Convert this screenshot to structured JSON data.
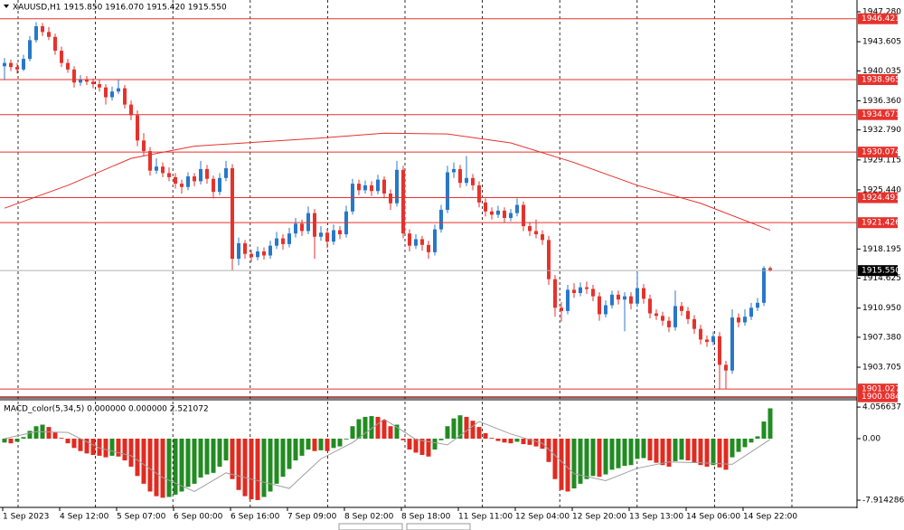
{
  "chart_data": {
    "type": "candlestick",
    "title": "XAUUSD,H1  1915.850 1916.070 1915.420 1915.550",
    "up_color": "#2878c8",
    "down_color": "#e6322d",
    "ylim": [
      1900.16,
      1948.72
    ],
    "yticks": [
      {
        "value": 1947.28,
        "label": "1947.280"
      },
      1943.605,
      1940.035,
      {
        "value": 1936.36,
        "label": "1936.360"
      },
      {
        "value": 1932.79,
        "label": "1932.790"
      },
      1929.115,
      {
        "value": 1925.44,
        "label": "1925.440"
      },
      1918.195,
      1914.625,
      {
        "value": 1910.95,
        "label": "1910.950"
      },
      {
        "value": 1907.38,
        "label": "1907.380"
      },
      1903.705
    ],
    "levels": [
      1946.421,
      1938.965,
      1934.671,
      1930.074,
      1924.491,
      1921.426,
      1901.027,
      1900.084
    ],
    "level_color": "#e6322d",
    "current_price": {
      "value": 1915.55,
      "label": "1915.550"
    },
    "x_labels": [
      "1 Sep 2023",
      "4 Sep 12:00",
      "5 Sep 07:00",
      "6 Sep 00:00",
      "6 Sep 16:00",
      "7 Sep 09:00",
      "8 Sep 02:00",
      "8 Sep 18:00",
      "11 Sep 11:00",
      "12 Sep 04:00",
      "12 Sep 20:00",
      "13 Sep 13:00",
      "14 Sep 06:00",
      "14 Sep 22:00"
    ],
    "candles": [
      [
        1940.6,
        1941.6,
        1938.9,
        1941.0
      ],
      [
        1941.0,
        1941.4,
        1940.0,
        1940.5
      ],
      [
        1940.5,
        1941.0,
        1939.7,
        1940.2
      ],
      [
        1940.2,
        1942.0,
        1940.0,
        1941.5
      ],
      [
        1941.5,
        1944.3,
        1941.2,
        1943.8
      ],
      [
        1943.8,
        1946.0,
        1943.5,
        1945.5
      ],
      [
        1945.5,
        1945.9,
        1944.3,
        1944.8
      ],
      [
        1944.8,
        1945.4,
        1943.8,
        1944.2
      ],
      [
        1944.2,
        1944.6,
        1942.0,
        1942.5
      ],
      [
        1942.5,
        1943.0,
        1940.5,
        1941.0
      ],
      [
        1941.0,
        1941.5,
        1939.8,
        1940.2
      ],
      [
        1940.2,
        1940.6,
        1938.0,
        1938.6
      ],
      [
        1938.6,
        1939.5,
        1938.2,
        1939.0
      ],
      [
        1939.0,
        1939.4,
        1938.3,
        1938.7
      ],
      [
        1938.7,
        1939.1,
        1937.9,
        1938.4
      ],
      [
        1938.4,
        1939.0,
        1937.5,
        1938.0
      ],
      [
        1938.0,
        1938.4,
        1935.9,
        1936.8
      ],
      [
        1936.8,
        1938.1,
        1936.4,
        1937.5
      ],
      [
        1937.5,
        1939.0,
        1937.2,
        1937.9
      ],
      [
        1937.9,
        1938.3,
        1935.4,
        1935.9
      ],
      [
        1935.9,
        1936.4,
        1934.0,
        1934.6
      ],
      [
        1934.6,
        1935.2,
        1930.8,
        1931.5
      ],
      [
        1931.5,
        1932.4,
        1929.6,
        1930.2
      ],
      [
        1930.2,
        1930.7,
        1927.2,
        1927.8
      ],
      [
        1927.8,
        1929.3,
        1927.4,
        1928.3
      ],
      [
        1928.3,
        1928.8,
        1927.0,
        1927.5
      ],
      [
        1927.5,
        1928.2,
        1926.5,
        1927.0
      ],
      [
        1927.0,
        1927.5,
        1925.6,
        1926.2
      ],
      [
        1926.2,
        1926.7,
        1925.0,
        1925.8
      ],
      [
        1925.8,
        1927.6,
        1925.4,
        1927.1
      ],
      [
        1927.1,
        1927.5,
        1925.9,
        1926.5
      ],
      [
        1926.5,
        1929.0,
        1926.1,
        1928.0
      ],
      [
        1928.0,
        1928.5,
        1926.2,
        1926.8
      ],
      [
        1926.8,
        1927.2,
        1924.4,
        1925.2
      ],
      [
        1925.2,
        1927.5,
        1924.8,
        1926.9
      ],
      [
        1926.9,
        1929.0,
        1926.5,
        1928.1
      ],
      [
        1928.1,
        1928.6,
        1915.6,
        1917.0
      ],
      [
        1917.0,
        1919.6,
        1916.2,
        1918.9
      ],
      [
        1918.9,
        1919.3,
        1917.0,
        1917.6
      ],
      [
        1917.6,
        1918.1,
        1916.6,
        1917.2
      ],
      [
        1917.2,
        1918.5,
        1916.8,
        1917.9
      ],
      [
        1917.9,
        1918.4,
        1916.9,
        1917.4
      ],
      [
        1917.4,
        1919.2,
        1917.0,
        1918.6
      ],
      [
        1918.6,
        1920.3,
        1918.2,
        1919.5
      ],
      [
        1919.5,
        1920.0,
        1918.1,
        1918.8
      ],
      [
        1918.8,
        1920.8,
        1918.4,
        1920.1
      ],
      [
        1920.1,
        1922.0,
        1919.6,
        1921.3
      ],
      [
        1921.3,
        1921.8,
        1919.8,
        1920.4
      ],
      [
        1920.4,
        1923.4,
        1920.0,
        1922.6
      ],
      [
        1922.6,
        1923.1,
        1917.0,
        1919.7
      ],
      [
        1919.7,
        1921.0,
        1919.2,
        1920.2
      ],
      [
        1920.2,
        1920.7,
        1918.3,
        1919.1
      ],
      [
        1919.1,
        1921.2,
        1918.7,
        1920.5
      ],
      [
        1920.5,
        1921.0,
        1919.4,
        1920.0
      ],
      [
        1920.0,
        1923.5,
        1919.6,
        1922.8
      ],
      [
        1922.8,
        1926.8,
        1922.4,
        1926.2
      ],
      [
        1926.2,
        1926.7,
        1924.8,
        1925.4
      ],
      [
        1925.4,
        1926.6,
        1925.0,
        1926.0
      ],
      [
        1926.0,
        1926.5,
        1924.7,
        1925.3
      ],
      [
        1925.3,
        1927.3,
        1924.9,
        1926.7
      ],
      [
        1926.7,
        1927.1,
        1924.4,
        1925.0
      ],
      [
        1925.0,
        1925.5,
        1923.0,
        1923.8
      ],
      [
        1923.8,
        1929.0,
        1923.4,
        1927.9
      ],
      [
        1927.9,
        1928.4,
        1919.5,
        1920.1
      ],
      [
        1920.1,
        1920.6,
        1917.9,
        1918.6
      ],
      [
        1918.6,
        1920.0,
        1918.2,
        1919.4
      ],
      [
        1919.4,
        1919.8,
        1918.0,
        1918.7
      ],
      [
        1918.7,
        1919.2,
        1917.0,
        1917.8
      ],
      [
        1917.8,
        1921.2,
        1917.4,
        1920.6
      ],
      [
        1920.6,
        1923.6,
        1920.2,
        1923.0
      ],
      [
        1923.0,
        1928.4,
        1922.6,
        1927.6
      ],
      [
        1927.6,
        1928.8,
        1926.9,
        1928.0
      ],
      [
        1928.0,
        1928.5,
        1925.7,
        1926.3
      ],
      [
        1926.3,
        1929.6,
        1925.9,
        1926.9
      ],
      [
        1926.9,
        1927.4,
        1925.4,
        1926.0
      ],
      [
        1926.0,
        1926.5,
        1923.3,
        1923.9
      ],
      [
        1923.9,
        1924.4,
        1922.2,
        1922.8
      ],
      [
        1922.8,
        1923.3,
        1921.8,
        1922.4
      ],
      [
        1922.4,
        1923.5,
        1922.0,
        1922.9
      ],
      [
        1922.9,
        1923.3,
        1921.4,
        1922.0
      ],
      [
        1922.0,
        1923.1,
        1921.6,
        1922.6
      ],
      [
        1922.6,
        1924.4,
        1922.2,
        1923.6
      ],
      [
        1923.6,
        1924.0,
        1920.4,
        1921.0
      ],
      [
        1921.0,
        1921.5,
        1919.8,
        1920.4
      ],
      [
        1920.4,
        1921.8,
        1919.5,
        1920.0
      ],
      [
        1920.0,
        1920.5,
        1918.7,
        1919.3
      ],
      [
        1919.3,
        1919.8,
        1913.8,
        1914.5
      ],
      [
        1914.5,
        1915.0,
        1909.9,
        1911.0
      ],
      [
        1911.0,
        1911.7,
        1909.3,
        1910.6
      ],
      [
        1910.6,
        1913.8,
        1910.2,
        1913.2
      ],
      [
        1913.2,
        1914.0,
        1912.2,
        1912.8
      ],
      [
        1912.8,
        1914.1,
        1912.4,
        1913.5
      ],
      [
        1913.5,
        1914.2,
        1912.7,
        1913.3
      ],
      [
        1913.3,
        1913.8,
        1911.8,
        1912.4
      ],
      [
        1912.4,
        1912.9,
        1909.4,
        1910.2
      ],
      [
        1910.2,
        1911.9,
        1909.8,
        1911.3
      ],
      [
        1911.3,
        1913.1,
        1910.9,
        1912.6
      ],
      [
        1912.6,
        1913.1,
        1911.4,
        1912.0
      ],
      [
        1912.0,
        1912.9,
        1908.1,
        1912.4
      ],
      [
        1912.4,
        1912.9,
        1910.8,
        1911.5
      ],
      [
        1911.5,
        1915.4,
        1911.1,
        1913.4
      ],
      [
        1913.4,
        1913.9,
        1911.5,
        1912.1
      ],
      [
        1912.1,
        1912.6,
        1909.7,
        1910.3
      ],
      [
        1910.3,
        1910.8,
        1909.5,
        1910.0
      ],
      [
        1910.0,
        1910.5,
        1908.8,
        1909.4
      ],
      [
        1909.4,
        1909.9,
        1908.0,
        1908.6
      ],
      [
        1908.6,
        1913.1,
        1908.2,
        1911.2
      ],
      [
        1911.2,
        1911.7,
        1910.0,
        1910.6
      ],
      [
        1910.6,
        1911.1,
        1909.0,
        1909.6
      ],
      [
        1909.6,
        1910.1,
        1907.8,
        1908.4
      ],
      [
        1908.4,
        1908.9,
        1906.5,
        1907.1
      ],
      [
        1907.1,
        1907.6,
        1906.2,
        1906.8
      ],
      [
        1906.8,
        1908.1,
        1906.4,
        1907.5
      ],
      [
        1907.5,
        1908.0,
        1901.0,
        1904.0
      ],
      [
        1904.0,
        1904.5,
        1901.0,
        1903.3
      ],
      [
        1903.3,
        1910.8,
        1902.9,
        1909.8
      ],
      [
        1909.8,
        1910.3,
        1908.6,
        1909.2
      ],
      [
        1909.2,
        1910.8,
        1908.8,
        1909.9
      ],
      [
        1909.9,
        1911.6,
        1909.5,
        1911.0
      ],
      [
        1911.0,
        1912.2,
        1910.6,
        1911.6
      ],
      [
        1911.6,
        1916.1,
        1911.2,
        1915.85
      ],
      [
        1915.85,
        1916.07,
        1915.42,
        1915.55
      ]
    ],
    "ma": {
      "color": "#e6322d",
      "x": [
        0,
        10,
        20,
        30,
        40,
        50,
        60,
        70,
        80,
        90,
        100,
        110,
        121
      ],
      "values": [
        1923.2,
        1926.0,
        1929.3,
        1930.8,
        1931.3,
        1931.8,
        1932.4,
        1932.3,
        1931.2,
        1928.8,
        1926.0,
        1923.8,
        1920.5
      ]
    },
    "macd": {
      "title": "MACD_color(5,34,5) 0.000000 0.000000 2.521072",
      "ylim": [
        -8.49,
        5.0
      ],
      "yticks": [
        4.056637,
        {
          "value": 0,
          "label": "0.00"
        },
        -7.914286
      ],
      "up_color": "#228b22",
      "down_color": "#e02b20",
      "signal_color": "#a0a0a0",
      "values": [
        -0.5,
        -0.6,
        -0.4,
        0.2,
        1.0,
        1.6,
        1.8,
        1.5,
        0.8,
        0.1,
        -0.6,
        -1.2,
        -1.6,
        -1.9,
        -2.1,
        -2.2,
        -2.4,
        -2.2,
        -2.3,
        -2.8,
        -3.6,
        -4.8,
        -5.8,
        -6.8,
        -7.4,
        -7.6,
        -7.5,
        -7.2,
        -6.8,
        -6.2,
        -5.8,
        -5.0,
        -4.6,
        -4.4,
        -3.6,
        -2.8,
        -5.2,
        -6.6,
        -7.4,
        -7.8,
        -7.9,
        -7.5,
        -6.8,
        -5.8,
        -4.9,
        -3.9,
        -2.8,
        -2.2,
        -1.4,
        -1.6,
        -1.5,
        -1.6,
        -1.2,
        -1.0,
        -0.1,
        1.6,
        2.5,
        2.8,
        2.9,
        2.8,
        2.4,
        1.6,
        1.8,
        -0.2,
        -1.4,
        -1.8,
        -2.1,
        -2.3,
        -1.4,
        -0.2,
        1.6,
        2.6,
        3.0,
        2.8,
        2.3,
        1.5,
        0.7,
        0.1,
        -0.3,
        -0.5,
        -0.6,
        -0.4,
        -0.7,
        -0.8,
        -1.0,
        -1.3,
        -3.0,
        -5.2,
        -6.6,
        -6.8,
        -6.4,
        -5.8,
        -5.2,
        -4.8,
        -4.9,
        -4.6,
        -4.0,
        -3.8,
        -3.5,
        -3.4,
        -2.6,
        -2.5,
        -2.8,
        -3.1,
        -3.4,
        -3.6,
        -2.9,
        -2.7,
        -2.8,
        -3.1,
        -3.4,
        -3.6,
        -3.4,
        -3.7,
        -4.0,
        -2.4,
        -1.7,
        -1.1,
        -0.5,
        0.3,
        2.2,
        3.9
      ],
      "signal": {
        "x": [
          0,
          5,
          10,
          15,
          20,
          25,
          30,
          35,
          40,
          45,
          50,
          55,
          60,
          65,
          70,
          75,
          80,
          85,
          90,
          95,
          100,
          105,
          110,
          115,
          121
        ],
        "values": [
          0.0,
          0.9,
          0.8,
          -1.2,
          -2.2,
          -5.0,
          -6.8,
          -4.4,
          -5.4,
          -6.4,
          -2.6,
          -0.5,
          2.5,
          -0.1,
          -0.8,
          2.2,
          0.6,
          -0.6,
          -4.5,
          -5.4,
          -3.8,
          -3.0,
          -3.1,
          -3.3,
          -0.1
        ]
      }
    }
  }
}
